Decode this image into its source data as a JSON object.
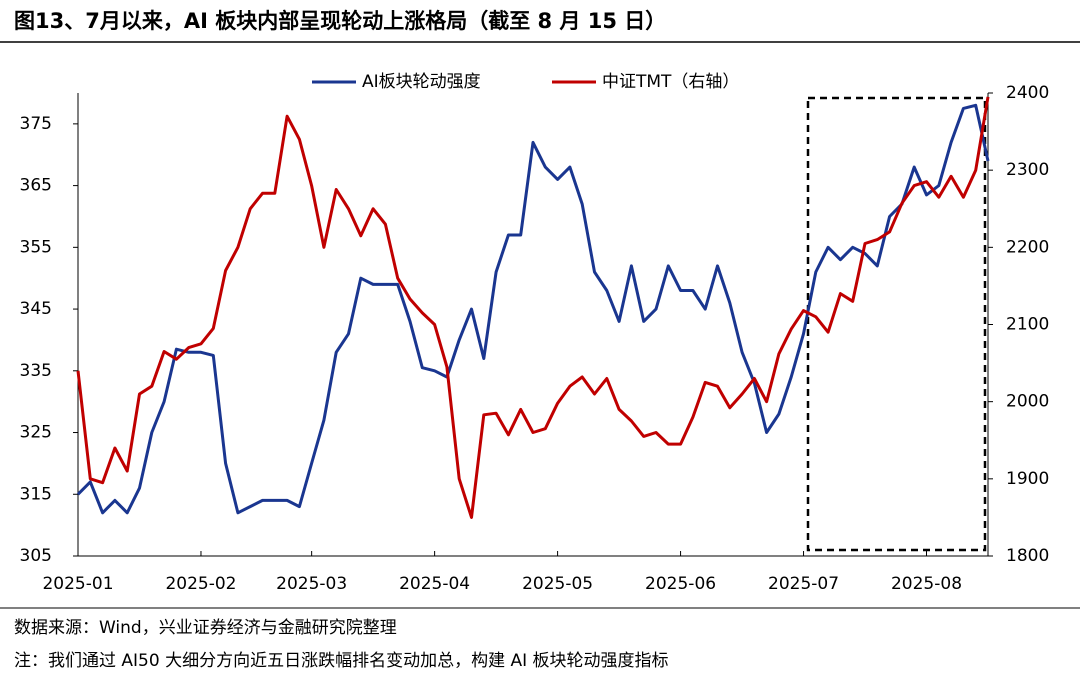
{
  "chart_data": {
    "type": "line",
    "title": "图13、7月以来，AI 板块内部呈现轮动上涨格局（截至 8 月 15 日）",
    "source": "数据来源：Wind，兴业证券经济与金融研究院整理",
    "note": "注：我们通过 AI50 大细分方向近五日涨跌幅排名变动加总，构建 AI 板块轮动强度指标",
    "categories": [
      "2025-01",
      null,
      null,
      null,
      null,
      null,
      null,
      null,
      null,
      null,
      "2025-02",
      null,
      null,
      null,
      null,
      null,
      null,
      null,
      null,
      "2025-03",
      null,
      null,
      null,
      null,
      null,
      null,
      null,
      null,
      null,
      "2025-04",
      null,
      null,
      null,
      null,
      null,
      null,
      null,
      null,
      null,
      "2025-05",
      null,
      null,
      null,
      null,
      null,
      null,
      null,
      null,
      null,
      "2025-06",
      null,
      null,
      null,
      null,
      null,
      null,
      null,
      null,
      null,
      "2025-07",
      null,
      null,
      null,
      null,
      null,
      null,
      null,
      null,
      null,
      "2025-08",
      null,
      null,
      null,
      null,
      null
    ],
    "series": [
      {
        "name": "AI板块轮动强度",
        "color": "#1a3690",
        "axis": "y",
        "values": [
          315,
          317,
          312,
          314,
          312,
          316,
          325,
          330,
          338.5,
          338,
          338,
          337.5,
          320,
          312,
          313,
          314,
          314,
          314,
          313,
          320,
          327,
          338,
          341,
          350,
          349,
          349,
          349,
          343,
          335.5,
          335,
          334,
          340,
          345,
          337,
          351,
          357,
          357,
          372,
          368,
          366,
          368,
          362,
          351,
          348,
          343,
          352,
          343,
          345,
          352,
          348,
          348,
          345,
          352,
          346,
          338,
          333,
          325,
          328,
          334,
          341,
          351,
          355,
          353,
          355,
          354,
          352,
          360,
          362,
          368,
          363.5,
          365,
          372,
          377.5,
          378,
          369
        ]
      },
      {
        "name": "中证TMT（右轴）",
        "color": "#c00000",
        "axis": "y2",
        "values": [
          2040,
          1900,
          1895,
          1940,
          1910,
          2010,
          2020,
          2065,
          2055,
          2070,
          2075,
          2095,
          2170,
          2200,
          2250,
          2270,
          2270,
          2370,
          2340,
          2280,
          2200,
          2275,
          2250,
          2215,
          2250,
          2230,
          2160,
          2133,
          2115,
          2100,
          2045,
          1900,
          1850,
          1983,
          1985,
          1957,
          1990,
          1960,
          1965,
          1998,
          2020,
          2032,
          2010,
          2030,
          1990,
          1975,
          1955,
          1960,
          1945,
          1945,
          1980,
          2025,
          2020,
          1992,
          2010,
          2030,
          2000,
          2062,
          2094,
          2118,
          2110,
          2090,
          2140,
          2130,
          2205,
          2210,
          2220,
          2257,
          2280,
          2285,
          2265,
          2292,
          2265,
          2300,
          2395
        ]
      }
    ],
    "ylim": [
      305,
      380
    ],
    "yticks": [
      305,
      315,
      325,
      335,
      345,
      355,
      365,
      375
    ],
    "y2lim": [
      1800,
      2400
    ],
    "y2ticks": [
      1800,
      1900,
      2000,
      2100,
      2200,
      2300,
      2400
    ],
    "legend": "top",
    "grid": false
  }
}
